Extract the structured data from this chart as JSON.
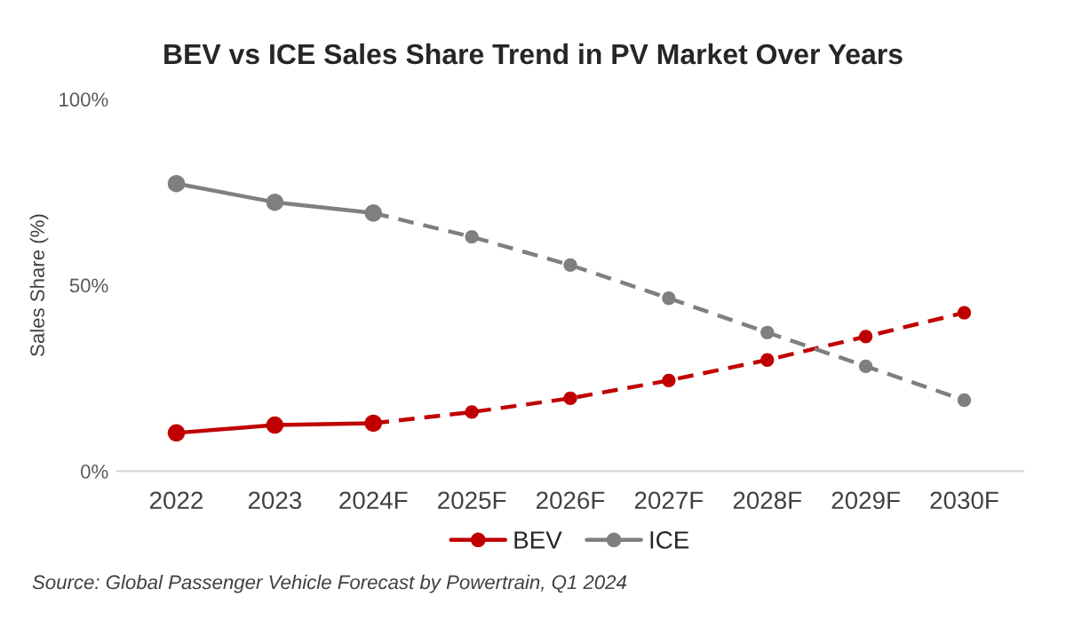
{
  "chart_data": {
    "type": "line",
    "title": "BEV vs ICE Sales Share Trend in PV Market Over Years",
    "ylabel": "Sales Share (%)",
    "categories": [
      "2022",
      "2023",
      "2024F",
      "2025F",
      "2026F",
      "2027F",
      "2028F",
      "2029F",
      "2030F"
    ],
    "series": [
      {
        "name": "BEV",
        "color": "#c00000",
        "line_style": "solid",
        "values": [
          10.3,
          12.4,
          12.9,
          null,
          null,
          null,
          null,
          null,
          null
        ]
      },
      {
        "name": "ICE",
        "color": "#7f7f7f",
        "line_style": "solid",
        "values": [
          77.3,
          72.3,
          69.4,
          null,
          null,
          null,
          null,
          null,
          null
        ]
      },
      {
        "color": "#c00000",
        "line_style": "dashed",
        "values": [
          null,
          null,
          12.9,
          15.9,
          19.6,
          24.4,
          29.9,
          36.2,
          42.6
        ]
      },
      {
        "color": "#7f7f7f",
        "line_style": "dashed",
        "values": [
          null,
          null,
          69.4,
          63.0,
          55.4,
          46.5,
          37.3,
          28.2,
          19.1
        ]
      }
    ],
    "ylim": [
      0,
      100
    ],
    "yticks": [
      {
        "value": 0,
        "label": "0%"
      },
      {
        "value": 50,
        "label": "50%"
      },
      {
        "value": 100,
        "label": "100%"
      }
    ],
    "grid": false,
    "marker": "circle",
    "legend": "bottom",
    "annotations": [
      "Source: Global Passenger Vehicle Forecast by Powertrain, Q1 2024"
    ]
  }
}
